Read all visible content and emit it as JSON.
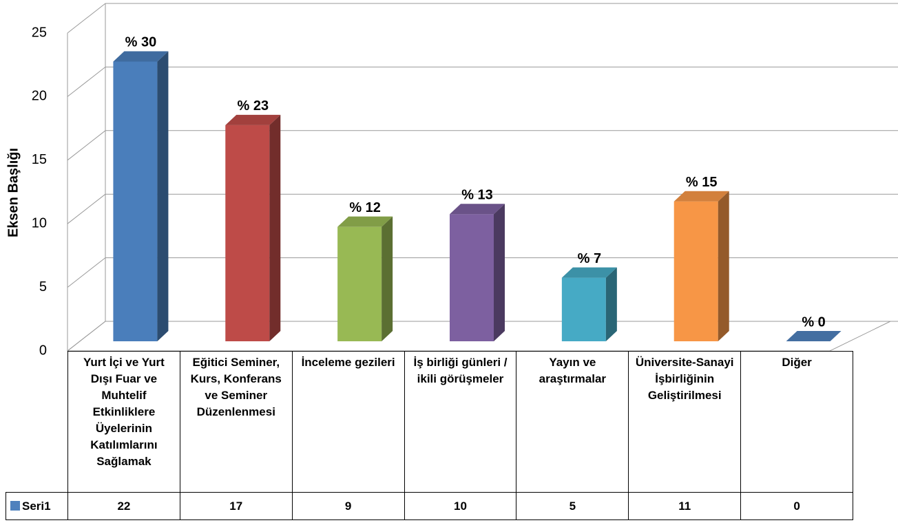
{
  "chart_data": {
    "type": "bar3d",
    "y_label": "Eksen Başlığı",
    "categories": [
      "Yurt İçi ve Yurt Dışı Fuar ve Muhtelif Etkinliklere Üyelerinin Katılımlarını Sağlamak",
      "Eğitici Seminer, Kurs, Konferans ve Seminer Düzenlenmesi",
      "İnceleme gezileri",
      "İş birliği günleri / ikili görüşmeler",
      "Yayın ve araştırmalar",
      "Üniversite-Sanayi İşbirliğinin Geliştirilmesi",
      "Diğer"
    ],
    "series": [
      {
        "name": "Seri1",
        "color": "#4f81bd",
        "values": [
          22,
          17,
          9,
          10,
          5,
          11,
          0
        ],
        "colors": [
          "#4a7ebb",
          "#be4b48",
          "#98b954",
          "#7d60a0",
          "#46aac5",
          "#f79646",
          "#4f81bd"
        ]
      }
    ],
    "percent_labels": {
      "values": [
        30,
        23,
        12,
        13,
        7,
        15,
        0
      ],
      "value_labels": [
        "% 30",
        "% 23",
        "% 12",
        "% 13",
        "% 7",
        "% 15",
        "% 0"
      ]
    },
    "ylim": [
      0,
      25
    ],
    "yticks": [
      0,
      5,
      10,
      15,
      20,
      25
    ],
    "grid": true,
    "data_table": true
  }
}
